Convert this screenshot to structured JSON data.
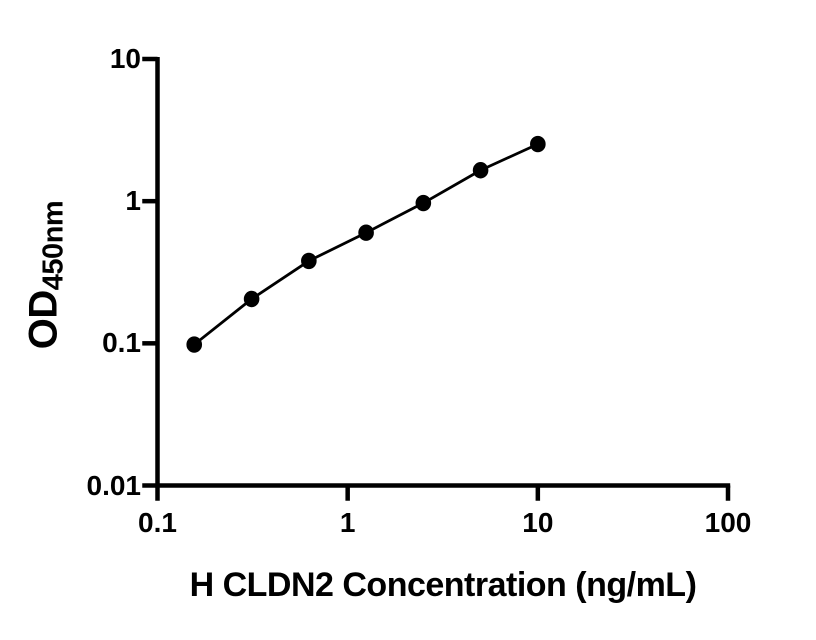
{
  "figure": {
    "background": "#ffffff",
    "axis_color": "#000000",
    "ylabel_main": "OD",
    "ylabel_sub": "450nm",
    "xlabel": "H CLDN2 Concentration (ng/mL)"
  },
  "chart_data": {
    "type": "scatter",
    "title": "",
    "xlabel": "H CLDN2 Concentration (ng/mL)",
    "ylabel": "OD450nm",
    "x_scale": "log",
    "y_scale": "log",
    "xlim": [
      0.1,
      100
    ],
    "ylim": [
      0.01,
      10
    ],
    "x_ticks": [
      0.1,
      1,
      10,
      100
    ],
    "x_tick_labels": [
      "0.1",
      "1",
      "10",
      "100"
    ],
    "y_ticks": [
      0.01,
      0.1,
      1,
      10
    ],
    "y_tick_labels": [
      "0.01",
      "0.1",
      "1",
      "10"
    ],
    "grid": false,
    "legend_position": "none",
    "marker_shape": "circle",
    "marker_color": "#000000",
    "line_color": "#000000",
    "x": [
      0.156,
      0.3125,
      0.625,
      1.25,
      2.5,
      5,
      10
    ],
    "y": [
      0.098,
      0.205,
      0.38,
      0.6,
      0.97,
      1.65,
      2.52
    ]
  }
}
